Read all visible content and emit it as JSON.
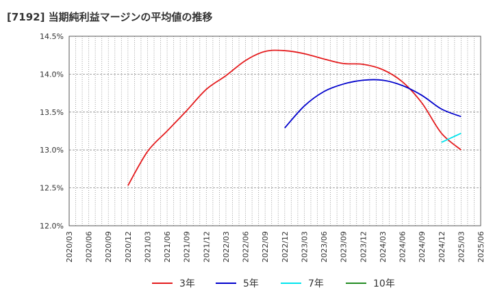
{
  "chart_data": {
    "type": "line",
    "title": "[7192]  当期純利益マージンの平均値の推移",
    "xlabel": "",
    "ylabel": "",
    "ylim": [
      12.0,
      14.5
    ],
    "y_ticks": [
      "12.0%",
      "12.5%",
      "13.0%",
      "13.5%",
      "14.0%",
      "14.5%"
    ],
    "y_tick_values": [
      12.0,
      12.5,
      13.0,
      13.5,
      14.0,
      14.5
    ],
    "x_ticks": [
      "2020/03",
      "2020/06",
      "2020/09",
      "2020/12",
      "2021/03",
      "2021/06",
      "2021/09",
      "2021/12",
      "2022/03",
      "2022/06",
      "2022/09",
      "2022/12",
      "2023/03",
      "2023/06",
      "2023/09",
      "2023/12",
      "2024/03",
      "2024/06",
      "2024/09",
      "2024/12",
      "2025/03",
      "2025/06"
    ],
    "grid": true,
    "legend_position": "bottom",
    "series": [
      {
        "name": "3年",
        "color": "#e41a1c",
        "x": [
          "2020/12",
          "2021/03",
          "2021/06",
          "2021/09",
          "2021/12",
          "2022/03",
          "2022/06",
          "2022/09",
          "2022/12",
          "2023/03",
          "2023/06",
          "2023/09",
          "2023/12",
          "2024/03",
          "2024/06",
          "2024/09",
          "2024/12",
          "2025/03"
        ],
        "values": [
          12.53,
          12.98,
          13.25,
          13.52,
          13.8,
          13.98,
          14.18,
          14.3,
          14.31,
          14.27,
          14.2,
          14.14,
          14.13,
          14.06,
          13.9,
          13.62,
          13.22,
          13.0
        ]
      },
      {
        "name": "5年",
        "color": "#0000cc",
        "x": [
          "2022/12",
          "2023/03",
          "2023/06",
          "2023/09",
          "2023/12",
          "2024/03",
          "2024/06",
          "2024/09",
          "2024/12",
          "2025/03"
        ],
        "values": [
          13.29,
          13.58,
          13.77,
          13.87,
          13.92,
          13.92,
          13.85,
          13.72,
          13.54,
          13.44
        ]
      },
      {
        "name": "7年",
        "color": "#00e5ee",
        "x": [
          "2024/12",
          "2025/03"
        ],
        "values": [
          13.1,
          13.22
        ]
      },
      {
        "name": "10年",
        "color": "#228b22",
        "x": [],
        "values": []
      }
    ]
  }
}
